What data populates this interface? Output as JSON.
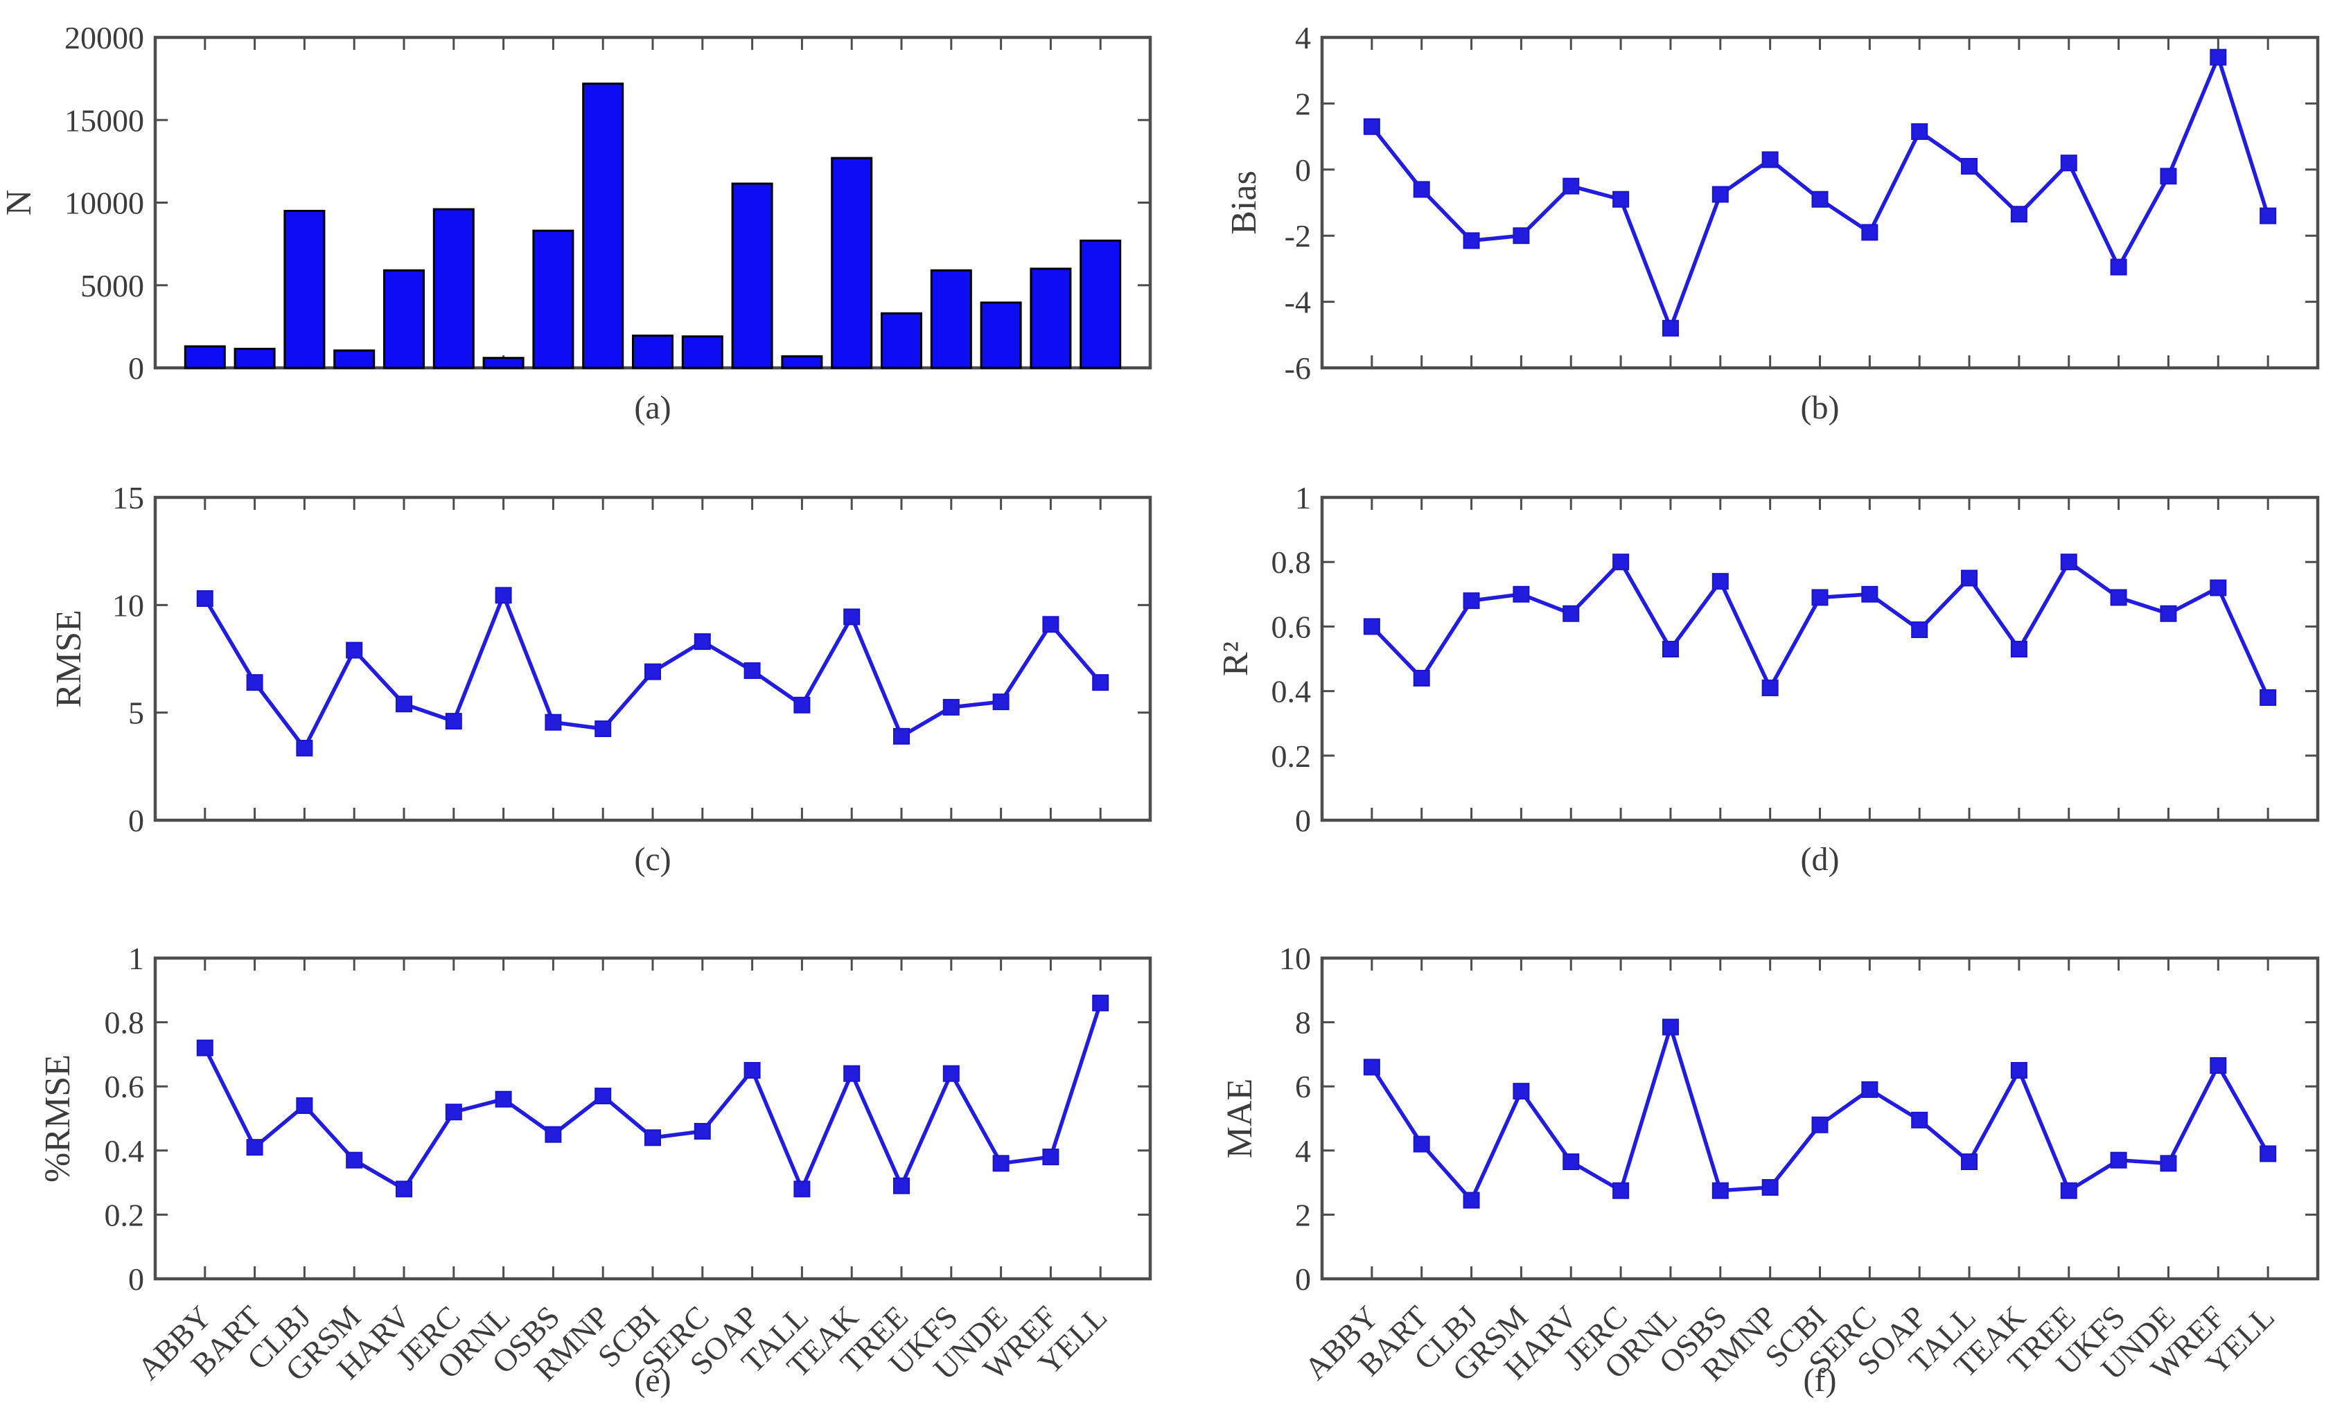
{
  "figure": {
    "background": "#ffffff",
    "colors": {
      "bar_fill": "#0d0cf2",
      "bar_edge": "#000000",
      "line": "#221cdf",
      "marker_fill": "#221cdf",
      "marker_edge": "#1a14c8",
      "axis": "#4d4d4d",
      "text": "#3c3c3c"
    }
  },
  "sites": [
    "ABBY",
    "BART",
    "CLBJ",
    "GRSM",
    "HARV",
    "JERC",
    "ORNL",
    "OSBS",
    "RMNP",
    "SCBI",
    "SERC",
    "SOAP",
    "TALL",
    "TEAK",
    "TREE",
    "UKFS",
    "UNDE",
    "WREF",
    "YELL"
  ],
  "chart_data": [
    {
      "panel": "a",
      "panel_label": "(a)",
      "type": "bar",
      "ylabel": "N",
      "xlabel": "",
      "ylim": [
        0,
        20000
      ],
      "yticks": [
        0,
        5000,
        10000,
        15000,
        20000
      ],
      "ytick_labels": [
        "0",
        "5000",
        "10000",
        "15000",
        "20000"
      ],
      "grid": false,
      "show_x_tick_labels": false,
      "categories": [
        "ABBY",
        "BART",
        "CLBJ",
        "GRSM",
        "HARV",
        "JERC",
        "ORNL",
        "OSBS",
        "RMNP",
        "SCBI",
        "SERC",
        "SOAP",
        "TALL",
        "TEAK",
        "TREE",
        "UKFS",
        "UNDE",
        "WREF",
        "YELL"
      ],
      "values": [
        1300,
        1150,
        9500,
        1050,
        5900,
        9600,
        600,
        8300,
        17200,
        1950,
        1900,
        11150,
        700,
        12700,
        3300,
        5900,
        3950,
        6000,
        7700
      ]
    },
    {
      "panel": "b",
      "panel_label": "(b)",
      "type": "line",
      "ylabel": "Bias",
      "xlabel": "",
      "ylim": [
        -6,
        4
      ],
      "yticks": [
        -6,
        -4,
        -2,
        0,
        2,
        4
      ],
      "ytick_labels": [
        "-6",
        "-4",
        "-2",
        "0",
        "2",
        "4"
      ],
      "grid": false,
      "show_x_tick_labels": false,
      "categories": [
        "ABBY",
        "BART",
        "CLBJ",
        "GRSM",
        "HARV",
        "JERC",
        "ORNL",
        "OSBS",
        "RMNP",
        "SCBI",
        "SERC",
        "SOAP",
        "TALL",
        "TEAK",
        "TREE",
        "UKFS",
        "UNDE",
        "WREF",
        "YELL"
      ],
      "values": [
        1.3,
        -0.6,
        -2.15,
        -2.0,
        -0.5,
        -0.9,
        -4.8,
        -0.75,
        0.3,
        -0.9,
        -1.9,
        1.15,
        0.1,
        -1.35,
        0.2,
        -2.95,
        -0.2,
        3.4,
        -1.4
      ]
    },
    {
      "panel": "c",
      "panel_label": "(c)",
      "type": "line",
      "ylabel": "RMSE",
      "xlabel": "",
      "ylim": [
        0,
        15
      ],
      "yticks": [
        0,
        5,
        10,
        15
      ],
      "ytick_labels": [
        "0",
        "5",
        "10",
        "15"
      ],
      "grid": false,
      "show_x_tick_labels": false,
      "categories": [
        "ABBY",
        "BART",
        "CLBJ",
        "GRSM",
        "HARV",
        "JERC",
        "ORNL",
        "OSBS",
        "RMNP",
        "SCBI",
        "SERC",
        "SOAP",
        "TALL",
        "TEAK",
        "TREE",
        "UKFS",
        "UNDE",
        "WREF",
        "YELL"
      ],
      "values": [
        10.3,
        6.4,
        3.35,
        7.9,
        5.4,
        4.6,
        10.45,
        4.55,
        4.25,
        6.9,
        8.3,
        6.95,
        5.35,
        9.45,
        3.9,
        5.25,
        5.5,
        9.1,
        6.4
      ]
    },
    {
      "panel": "d",
      "panel_label": "(d)",
      "type": "line",
      "ylabel": "R²",
      "xlabel": "",
      "ylim": [
        0,
        1
      ],
      "yticks": [
        0,
        0.2,
        0.4,
        0.6,
        0.8,
        1
      ],
      "ytick_labels": [
        "0",
        "0.2",
        "0.4",
        "0.6",
        "0.8",
        "1"
      ],
      "grid": false,
      "show_x_tick_labels": false,
      "categories": [
        "ABBY",
        "BART",
        "CLBJ",
        "GRSM",
        "HARV",
        "JERC",
        "ORNL",
        "OSBS",
        "RMNP",
        "SCBI",
        "SERC",
        "SOAP",
        "TALL",
        "TEAK",
        "TREE",
        "UKFS",
        "UNDE",
        "WREF",
        "YELL"
      ],
      "values": [
        0.6,
        0.44,
        0.68,
        0.7,
        0.64,
        0.8,
        0.53,
        0.74,
        0.41,
        0.69,
        0.7,
        0.59,
        0.75,
        0.53,
        0.8,
        0.69,
        0.64,
        0.72,
        0.38
      ]
    },
    {
      "panel": "e",
      "panel_label": "(e)",
      "type": "line",
      "ylabel": "%RMSE",
      "xlabel": "",
      "ylim": [
        0,
        1
      ],
      "yticks": [
        0,
        0.2,
        0.4,
        0.6,
        0.8,
        1
      ],
      "ytick_labels": [
        "0",
        "0.2",
        "0.4",
        "0.6",
        "0.8",
        "1"
      ],
      "grid": false,
      "show_x_tick_labels": true,
      "categories": [
        "ABBY",
        "BART",
        "CLBJ",
        "GRSM",
        "HARV",
        "JERC",
        "ORNL",
        "OSBS",
        "RMNP",
        "SCBI",
        "SERC",
        "SOAP",
        "TALL",
        "TEAK",
        "TREE",
        "UKFS",
        "UNDE",
        "WREF",
        "YELL"
      ],
      "values": [
        0.72,
        0.41,
        0.54,
        0.37,
        0.28,
        0.52,
        0.56,
        0.45,
        0.57,
        0.44,
        0.46,
        0.65,
        0.28,
        0.64,
        0.29,
        0.64,
        0.36,
        0.38,
        0.86
      ]
    },
    {
      "panel": "f",
      "panel_label": "(f)",
      "type": "line",
      "ylabel": "MAE",
      "xlabel": "",
      "ylim": [
        0,
        10
      ],
      "yticks": [
        0,
        2,
        4,
        6,
        8,
        10
      ],
      "ytick_labels": [
        "0",
        "2",
        "4",
        "6",
        "8",
        "10"
      ],
      "grid": false,
      "show_x_tick_labels": true,
      "categories": [
        "ABBY",
        "BART",
        "CLBJ",
        "GRSM",
        "HARV",
        "JERC",
        "ORNL",
        "OSBS",
        "RMNP",
        "SCBI",
        "SERC",
        "SOAP",
        "TALL",
        "TEAK",
        "TREE",
        "UKFS",
        "UNDE",
        "WREF",
        "YELL"
      ],
      "values": [
        6.6,
        4.2,
        2.45,
        5.85,
        3.65,
        2.75,
        7.85,
        2.75,
        2.85,
        4.8,
        5.9,
        4.95,
        3.65,
        6.5,
        2.75,
        3.7,
        3.6,
        6.65,
        3.9
      ]
    }
  ]
}
